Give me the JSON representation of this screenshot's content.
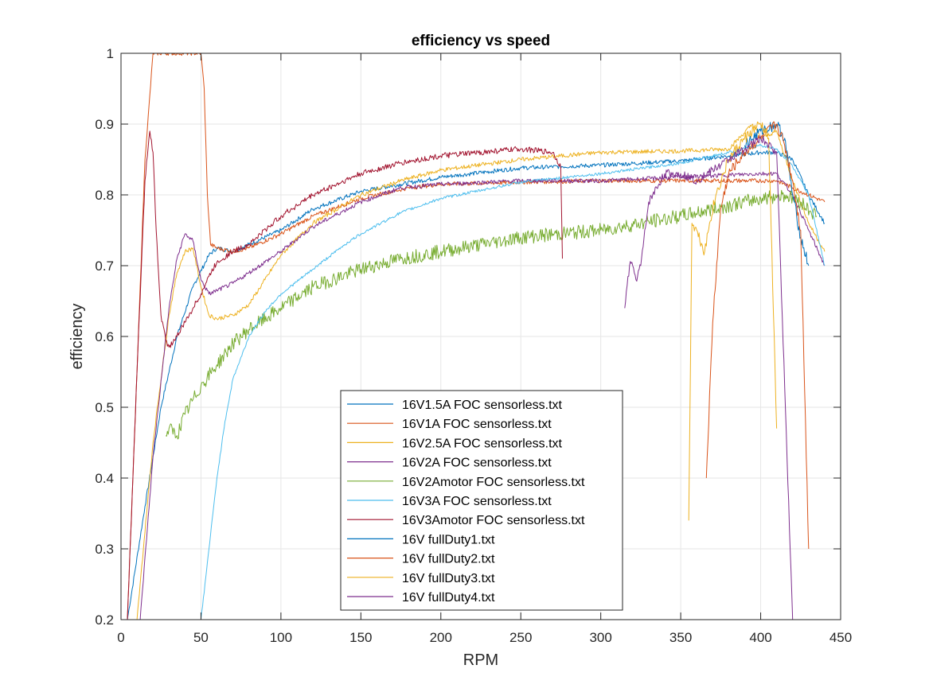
{
  "chart_data": {
    "type": "line",
    "title": "efficiency vs speed",
    "xlabel": "RPM",
    "ylabel": "efficiency",
    "xlim": [
      0,
      450
    ],
    "ylim": [
      0.2,
      1.0
    ],
    "xticks": [
      0,
      50,
      100,
      150,
      200,
      250,
      300,
      350,
      400,
      450
    ],
    "yticks": [
      0.2,
      0.3,
      0.4,
      0.5,
      0.6,
      0.7,
      0.8,
      0.9,
      1
    ],
    "xtick_labels": [
      "0",
      "50",
      "100",
      "150",
      "200",
      "250",
      "300",
      "350",
      "400",
      "450"
    ],
    "ytick_labels": [
      "0.2",
      "0.3",
      "0.4",
      "0.5",
      "0.6",
      "0.7",
      "0.8",
      "0.9",
      "1"
    ],
    "grid": true,
    "legend_position": "lower-center",
    "series": [
      {
        "name": "16V1.5A FOC sensorless.txt",
        "color": "#0072BD",
        "noise": 0.003,
        "x": [
          4,
          15,
          25,
          35,
          45,
          55,
          60,
          70,
          80,
          100,
          120,
          150,
          175,
          200,
          250,
          300,
          350,
          380,
          400,
          410,
          420,
          430,
          440
        ],
        "y": [
          0.2,
          0.36,
          0.5,
          0.6,
          0.67,
          0.715,
          0.725,
          0.72,
          0.73,
          0.75,
          0.78,
          0.805,
          0.815,
          0.825,
          0.838,
          0.842,
          0.848,
          0.855,
          0.86,
          0.86,
          0.85,
          0.8,
          0.76
        ]
      },
      {
        "name": "16V1A FOC sensorless.txt",
        "color": "#D95319",
        "noise": 0.003,
        "x": [
          4,
          10,
          15,
          20,
          50,
          52,
          54,
          56,
          60,
          70,
          80,
          100,
          120,
          150,
          180,
          200,
          250,
          300,
          350,
          400,
          410,
          420,
          430,
          440
        ],
        "y": [
          0.2,
          0.55,
          0.85,
          1.0,
          1.0,
          0.95,
          0.8,
          0.73,
          0.725,
          0.72,
          0.725,
          0.745,
          0.77,
          0.795,
          0.81,
          0.815,
          0.818,
          0.82,
          0.82,
          0.82,
          0.82,
          0.81,
          0.8,
          0.79
        ]
      },
      {
        "name": "16V2.5A FOC sensorless.txt",
        "color": "#EDB120",
        "noise": 0.003,
        "x": [
          10,
          20,
          30,
          35,
          40,
          45,
          50,
          55,
          60,
          70,
          80,
          90,
          100,
          120,
          150,
          175,
          200,
          250,
          300,
          350,
          380,
          395,
          400,
          410,
          420,
          430,
          440
        ],
        "y": [
          0.2,
          0.45,
          0.63,
          0.69,
          0.72,
          0.725,
          0.67,
          0.63,
          0.625,
          0.63,
          0.645,
          0.68,
          0.715,
          0.76,
          0.8,
          0.82,
          0.835,
          0.85,
          0.86,
          0.862,
          0.865,
          0.9,
          0.88,
          0.89,
          0.82,
          0.76,
          0.72
        ]
      },
      {
        "name": "16V2A FOC sensorless.txt",
        "color": "#7E2F8E",
        "noise": 0.003,
        "x": [
          12,
          20,
          30,
          35,
          40,
          45,
          50,
          55,
          60,
          70,
          80,
          100,
          120,
          150,
          175,
          200,
          250,
          300,
          350,
          400,
          410,
          420,
          430,
          440
        ],
        "y": [
          0.2,
          0.43,
          0.64,
          0.71,
          0.745,
          0.735,
          0.68,
          0.66,
          0.665,
          0.675,
          0.69,
          0.72,
          0.755,
          0.79,
          0.81,
          0.815,
          0.82,
          0.82,
          0.825,
          0.83,
          0.83,
          0.8,
          0.75,
          0.7
        ]
      },
      {
        "name": "16V2Amotor FOC sensorless.txt",
        "color": "#77AC30",
        "noise": 0.01,
        "x": [
          28,
          30,
          35,
          40,
          50,
          60,
          70,
          80,
          100,
          120,
          150,
          175,
          200,
          250,
          300,
          350,
          400,
          415,
          425,
          435
        ],
        "y": [
          0.46,
          0.47,
          0.46,
          0.49,
          0.53,
          0.56,
          0.59,
          0.61,
          0.64,
          0.67,
          0.695,
          0.71,
          0.72,
          0.74,
          0.75,
          0.77,
          0.795,
          0.8,
          0.79,
          0.77
        ]
      },
      {
        "name": "16V3A FOC sensorless.txt",
        "color": "#4DBEEE",
        "noise": 0.002,
        "x": [
          50,
          55,
          60,
          65,
          70,
          80,
          90,
          100,
          120,
          140,
          150,
          175,
          200,
          250,
          300,
          350,
          380,
          400,
          410,
          420,
          430,
          440
        ],
        "y": [
          0.2,
          0.3,
          0.4,
          0.48,
          0.54,
          0.6,
          0.635,
          0.66,
          0.695,
          0.73,
          0.745,
          0.775,
          0.795,
          0.818,
          0.83,
          0.845,
          0.86,
          0.87,
          0.865,
          0.84,
          0.8,
          0.7
        ]
      },
      {
        "name": "16V3Amotor FOC sensorless.txt",
        "color": "#A2142F",
        "noise": 0.004,
        "x": [
          4,
          10,
          15,
          18,
          20,
          22,
          25,
          28,
          30,
          35,
          40,
          45,
          50,
          55,
          60,
          70,
          80,
          100,
          120,
          150,
          175,
          200,
          250,
          270,
          275,
          276
        ],
        "y": [
          0.2,
          0.55,
          0.82,
          0.89,
          0.86,
          0.75,
          0.63,
          0.595,
          0.585,
          0.6,
          0.62,
          0.64,
          0.66,
          0.685,
          0.705,
          0.72,
          0.73,
          0.77,
          0.8,
          0.83,
          0.845,
          0.855,
          0.865,
          0.86,
          0.84,
          0.71
        ]
      },
      {
        "name": "16V fullDuty1.txt",
        "color": "#0072BD",
        "noise": 0.008,
        "x": [
          390,
          400,
          410,
          415,
          420,
          425,
          430
        ],
        "y": [
          0.87,
          0.89,
          0.9,
          0.88,
          0.8,
          0.74,
          0.7
        ]
      },
      {
        "name": "16V fullDuty2.txt",
        "color": "#D95319",
        "noise": 0.008,
        "x": [
          366,
          370,
          375,
          380,
          390,
          400,
          410,
          415,
          420,
          425,
          430
        ],
        "y": [
          0.4,
          0.62,
          0.78,
          0.83,
          0.86,
          0.88,
          0.9,
          0.87,
          0.82,
          0.75,
          0.3
        ]
      },
      {
        "name": "16V fullDuty3.txt",
        "color": "#EDB120",
        "noise": 0.008,
        "x": [
          355,
          357,
          360,
          365,
          368,
          372,
          380,
          390,
          400,
          405,
          410
        ],
        "y": [
          0.34,
          0.76,
          0.75,
          0.72,
          0.76,
          0.8,
          0.85,
          0.88,
          0.9,
          0.88,
          0.47
        ]
      },
      {
        "name": "16V fullDuty4.txt",
        "color": "#7E2F8E",
        "noise": 0.006,
        "x": [
          315,
          318,
          320,
          322,
          325,
          330,
          340,
          350,
          360,
          380,
          400,
          410,
          420
        ],
        "y": [
          0.64,
          0.7,
          0.7,
          0.68,
          0.7,
          0.79,
          0.83,
          0.83,
          0.82,
          0.85,
          0.88,
          0.86,
          0.2
        ]
      }
    ]
  }
}
